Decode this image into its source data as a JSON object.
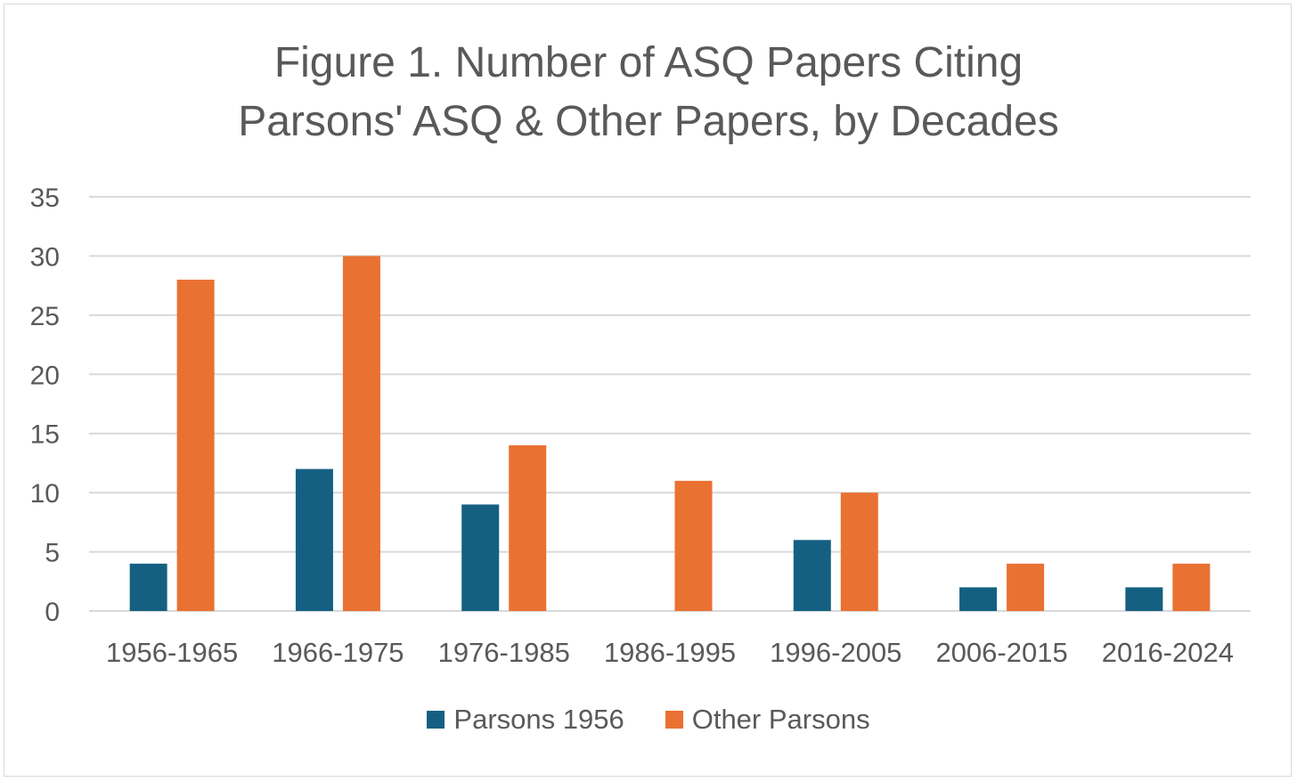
{
  "chart_data": {
    "type": "bar",
    "title_lines": [
      "Figure 1. Number of ASQ Papers Citing",
      "Parsons' ASQ & Other Papers, by Decades"
    ],
    "categories": [
      "1956-1965",
      "1966-1975",
      "1976-1985",
      "1986-1995",
      "1996-2005",
      "2006-2015",
      "2016-2024"
    ],
    "series": [
      {
        "name": "Parsons 1956",
        "color": "#156082",
        "values": [
          4,
          12,
          9,
          0,
          6,
          2,
          2
        ]
      },
      {
        "name": "Other Parsons",
        "color": "#e97132",
        "values": [
          28,
          30,
          14,
          11,
          10,
          4,
          4
        ]
      }
    ],
    "ylim": [
      0,
      35
    ],
    "yticks": [
      0,
      5,
      10,
      15,
      20,
      25,
      30,
      35
    ],
    "grid": true,
    "legend_position": "bottom"
  }
}
